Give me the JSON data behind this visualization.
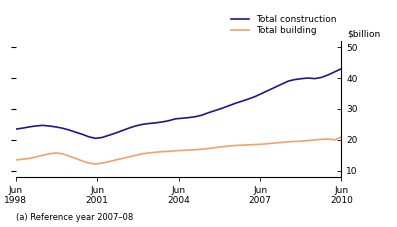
{
  "footnote": "(a) Reference year 2007–08",
  "legend_labels": [
    "Total construction",
    "Total building"
  ],
  "color_construction": "#1a1a8c",
  "color_building": "#f4a06a",
  "ylim": [
    8,
    52
  ],
  "yticks": [
    10,
    20,
    30,
    40,
    50
  ],
  "x_tick_labels": [
    "Jun\n1998",
    "Jun\n2001",
    "Jun\n2004",
    "Jun\n2007",
    "Jun\n2010"
  ],
  "x_tick_positions": [
    0,
    12,
    24,
    36,
    48
  ],
  "total_construction": [
    23.5,
    23.8,
    24.2,
    24.5,
    24.7,
    24.5,
    24.2,
    23.8,
    23.2,
    22.5,
    21.8,
    21.0,
    20.5,
    20.8,
    21.5,
    22.2,
    23.0,
    23.8,
    24.5,
    25.0,
    25.3,
    25.5,
    25.8,
    26.2,
    26.8,
    27.0,
    27.2,
    27.5,
    28.0,
    28.8,
    29.5,
    30.2,
    31.0,
    31.8,
    32.5,
    33.2,
    34.0,
    35.0,
    36.0,
    37.0,
    38.0,
    39.0,
    39.5,
    39.8,
    40.0,
    39.8,
    40.2,
    41.0,
    42.0,
    43.0
  ],
  "total_building": [
    13.5,
    13.8,
    14.0,
    14.5,
    15.0,
    15.5,
    15.8,
    15.5,
    14.8,
    14.0,
    13.2,
    12.5,
    12.2,
    12.5,
    13.0,
    13.5,
    14.0,
    14.5,
    15.0,
    15.5,
    15.8,
    16.0,
    16.2,
    16.3,
    16.5,
    16.6,
    16.7,
    16.8,
    17.0,
    17.2,
    17.5,
    17.8,
    18.0,
    18.2,
    18.3,
    18.4,
    18.5,
    18.6,
    18.8,
    19.0,
    19.2,
    19.4,
    19.5,
    19.6,
    19.8,
    20.0,
    20.2,
    20.3,
    20.0,
    21.0
  ]
}
